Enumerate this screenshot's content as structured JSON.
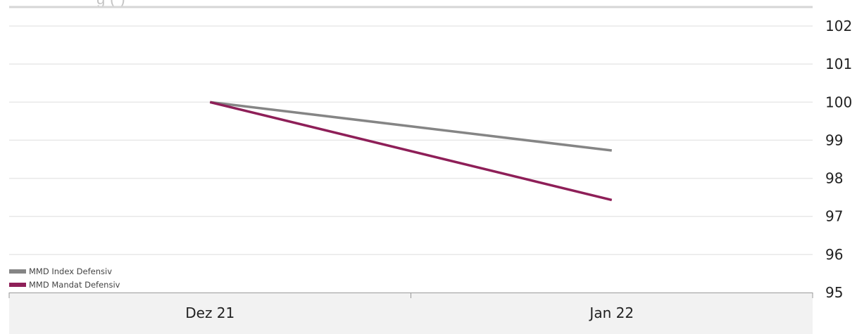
{
  "title_fragment": "g                (                         )",
  "colors": {
    "index": "#858585",
    "mandat": "#8e1f58",
    "grid": "#e8e8e8",
    "axis_band": "#f2f2f2",
    "top_rule": "#d6d6d6"
  },
  "chart_data": {
    "type": "line",
    "categories": [
      "Dez 21",
      "Jan 22"
    ],
    "series": [
      {
        "name": "MMD Index Defensiv",
        "color": "#858585",
        "values": [
          100.0,
          98.73
        ]
      },
      {
        "name": "MMD Mandat Defensiv",
        "color": "#8e1f58",
        "values": [
          100.0,
          97.43
        ]
      }
    ],
    "y_ticks": [
      "95",
      "96",
      "97",
      "98",
      "99",
      "100",
      "101",
      "102"
    ],
    "ylim": [
      95,
      102
    ],
    "y_axis_side": "right",
    "grid": true,
    "legend_position": "bottom-left"
  }
}
